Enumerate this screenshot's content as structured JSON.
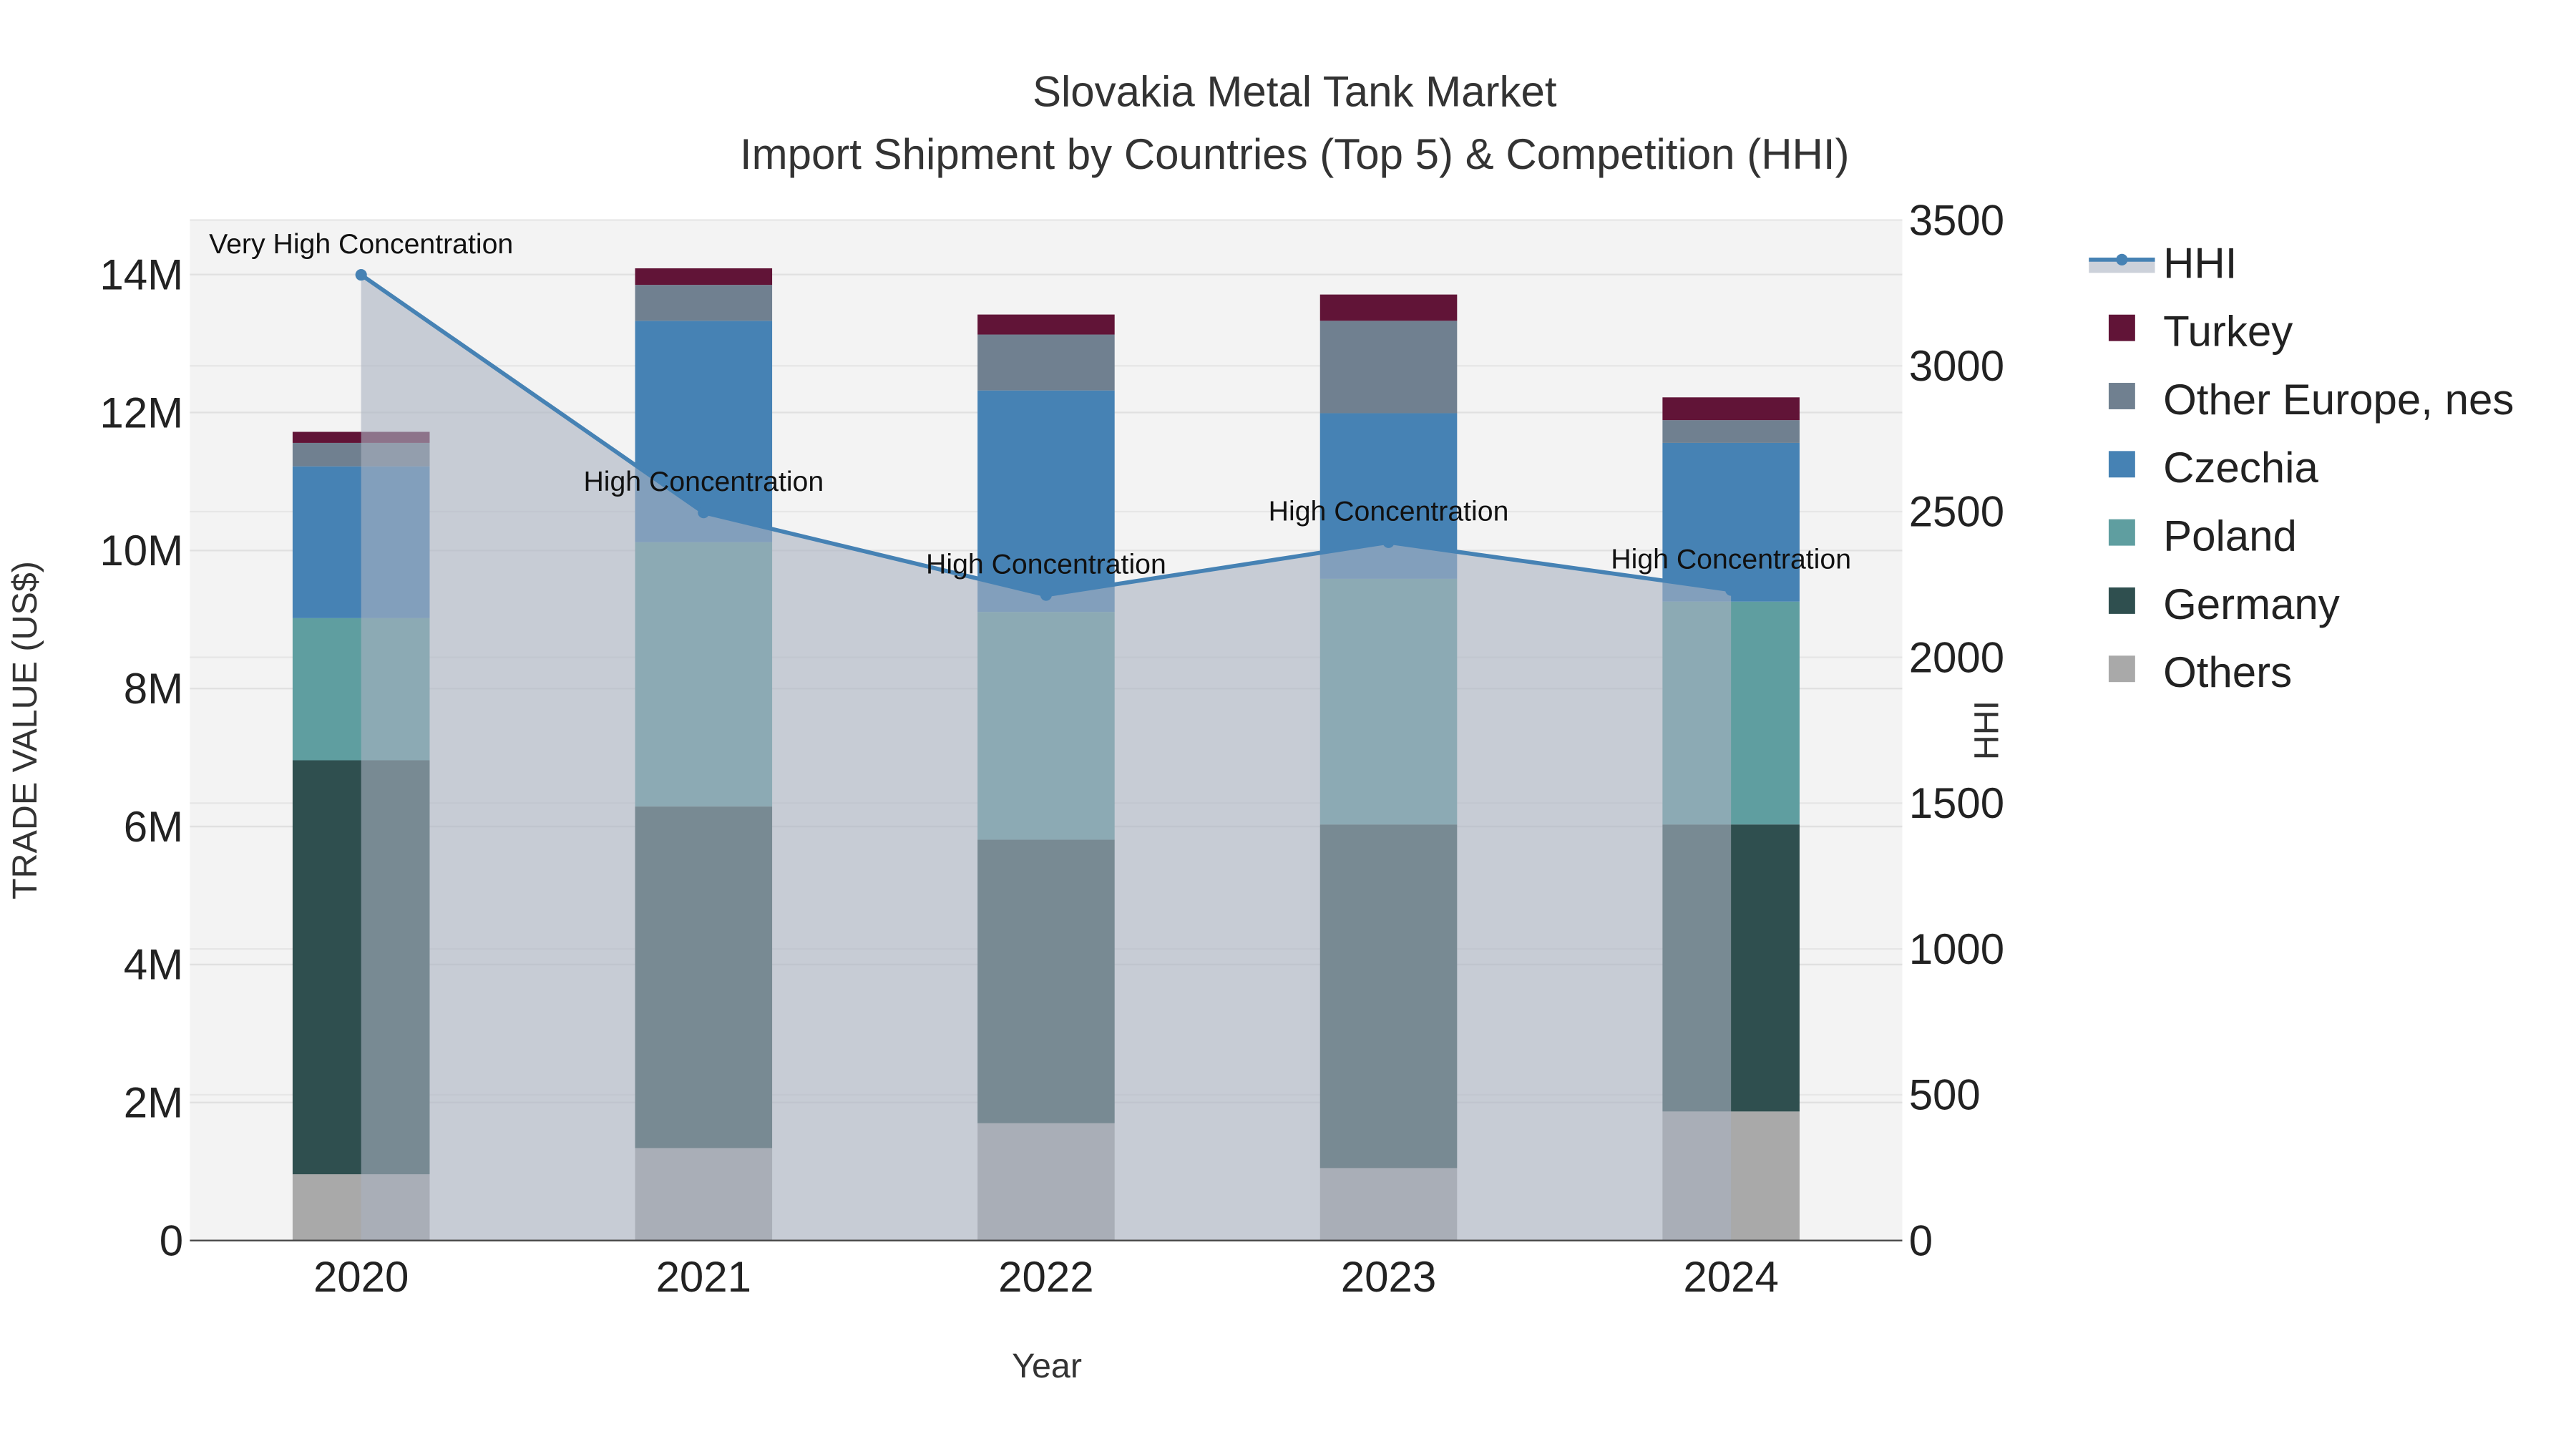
{
  "chart_data": {
    "type": "bar",
    "stacked": true,
    "title": "Slovakia Metal Tank Market",
    "subtitle": "Import Shipment by Countries (Top 5) & Competition (HHI)",
    "xlabel": "Year",
    "ylabel": "TRADE VALUE (US$)",
    "y2label": "HHI",
    "categories": [
      "2020",
      "2021",
      "2022",
      "2023",
      "2024"
    ],
    "ylim": [
      0,
      14800000
    ],
    "yticks": [
      0,
      2000000,
      4000000,
      6000000,
      8000000,
      10000000,
      12000000,
      14000000
    ],
    "ytick_labels": [
      "0",
      "2M",
      "4M",
      "6M",
      "8M",
      "10M",
      "12M",
      "14M"
    ],
    "y2lim": [
      0,
      3500
    ],
    "y2ticks": [
      0,
      500,
      1000,
      1500,
      2000,
      2500,
      3000,
      3500
    ],
    "y2tick_labels": [
      "0",
      "500",
      "1000",
      "1500",
      "2000",
      "2500",
      "3000",
      "3500"
    ],
    "grid": true,
    "legend_position": "right",
    "series": [
      {
        "name": "Others",
        "color": "#a9a9a9",
        "values": [
          960000,
          1340000,
          1700000,
          1050000,
          1870000
        ]
      },
      {
        "name": "Germany",
        "color": "#2f4f4f",
        "values": [
          6000000,
          4950000,
          4110000,
          4980000,
          4160000
        ]
      },
      {
        "name": "Poland",
        "color": "#5f9ea0",
        "values": [
          2060000,
          3830000,
          3300000,
          3560000,
          3230000
        ]
      },
      {
        "name": "Czechia",
        "color": "#4682b4",
        "values": [
          2200000,
          3210000,
          3210000,
          2400000,
          2300000
        ]
      },
      {
        "name": "Other Europe, nes",
        "color": "#708090",
        "values": [
          340000,
          520000,
          810000,
          1340000,
          330000
        ]
      },
      {
        "name": "Turkey",
        "color": "#611437",
        "values": [
          160000,
          240000,
          290000,
          380000,
          330000
        ]
      }
    ],
    "line": {
      "name": "HHI",
      "color": "#4682b4",
      "values": [
        3312,
        2497,
        2214,
        2395,
        2231
      ],
      "annotations": [
        "Very High Concentration",
        "High Concentration",
        "High Concentration",
        "High Concentration",
        "High Concentration"
      ]
    },
    "legend_order": [
      "HHI",
      "Turkey",
      "Other Europe, nes",
      "Czechia",
      "Poland",
      "Germany",
      "Others"
    ]
  }
}
